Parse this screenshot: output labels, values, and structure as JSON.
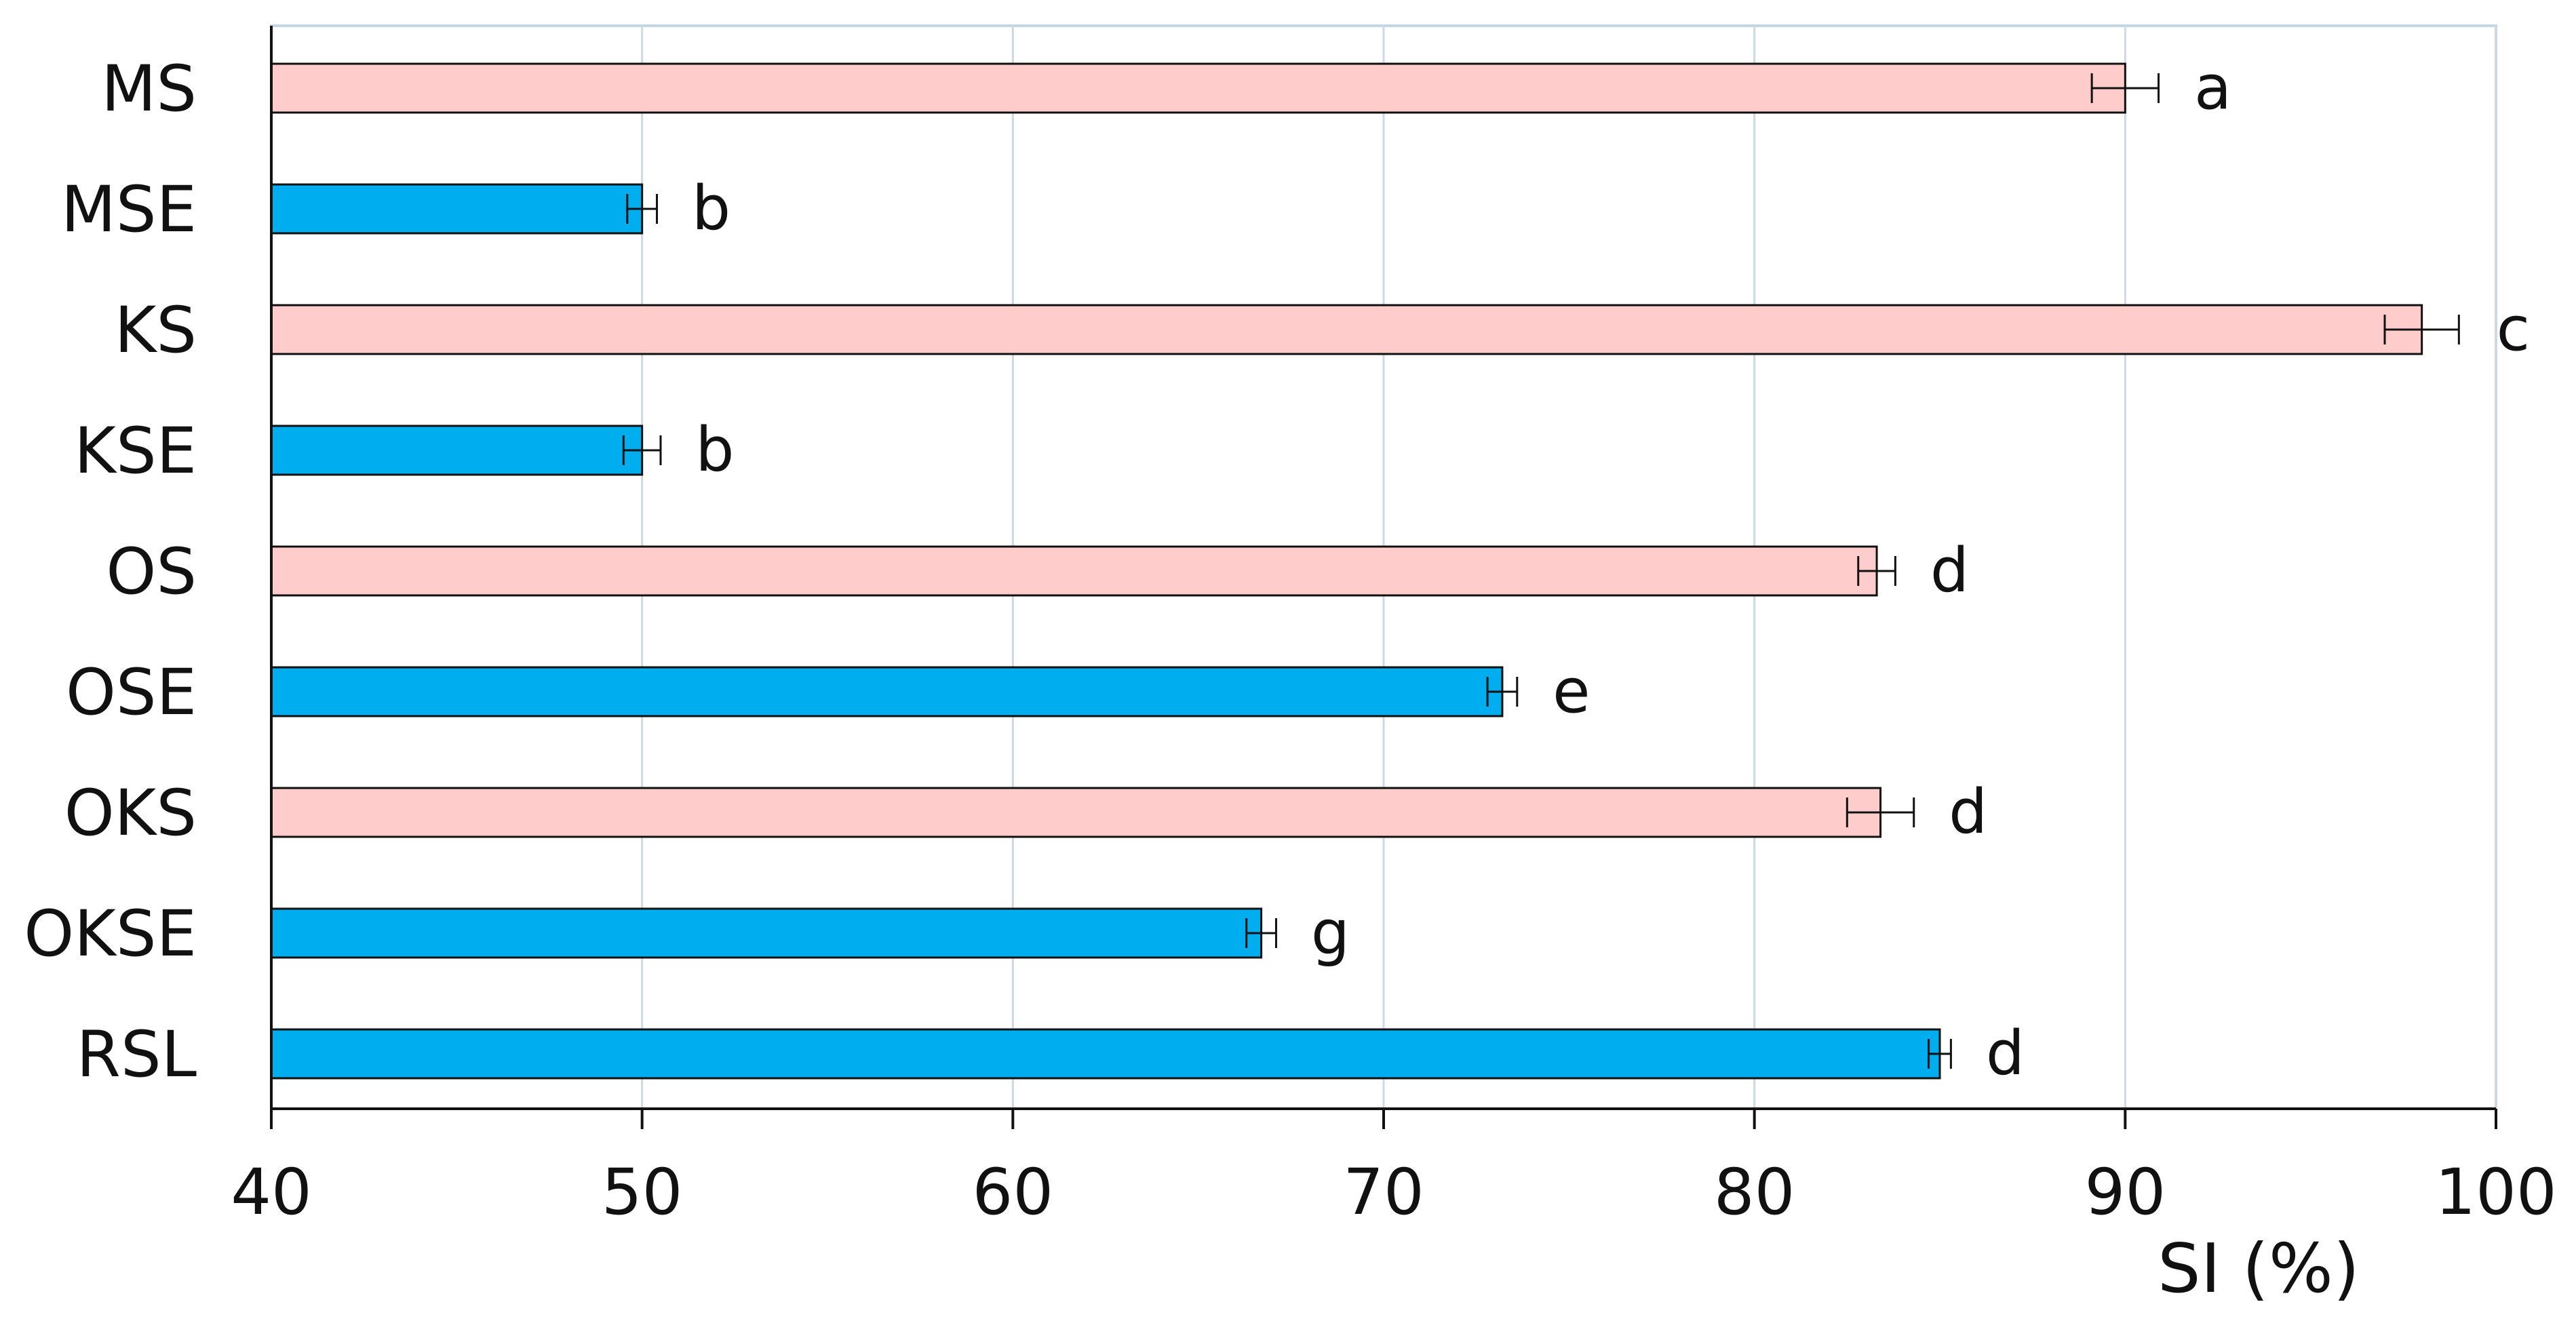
{
  "chart_data": {
    "type": "bar",
    "orientation": "horizontal",
    "xlabel": "SI (%)",
    "ylabel": "",
    "xlim": [
      40,
      100
    ],
    "x_ticks": [
      40,
      50,
      60,
      70,
      80,
      90,
      100
    ],
    "grid": true,
    "legend": "none",
    "colors": {
      "pink": "#ffcccc",
      "blue": "#00aeef",
      "grid": "#cfd9e6",
      "frame": "#c5d5e8"
    },
    "categories": [
      "MS",
      "MSE",
      "KS",
      "KSE",
      "OS",
      "OSE",
      "OKS",
      "OKSE",
      "RSL"
    ],
    "values": [
      90.0,
      50.0,
      98.0,
      50.0,
      83.3,
      73.2,
      83.4,
      66.7,
      85.0
    ],
    "errors": [
      0.9,
      0.4,
      1.0,
      0.5,
      0.5,
      0.4,
      0.9,
      0.4,
      0.3
    ],
    "significance": [
      "a",
      "b",
      "c",
      "b",
      "d",
      "e",
      "d",
      "g",
      "d"
    ],
    "bar_colors": [
      "pink",
      "blue",
      "pink",
      "blue",
      "pink",
      "blue",
      "pink",
      "blue",
      "blue"
    ]
  }
}
